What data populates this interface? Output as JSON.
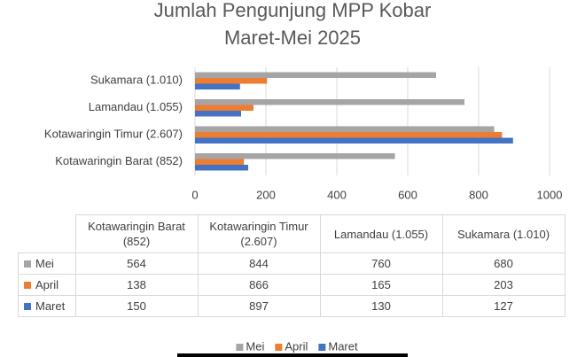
{
  "chart_data": {
    "type": "bar",
    "orientation": "horizontal",
    "title": "Jumlah Pengunjung MPP Kobar",
    "subtitle": "Maret-Mei 2025",
    "categories": [
      "Kotawaringin Barat (852)",
      "Kotawaringin Timur (2.607)",
      "Lamandau (1.055)",
      "Sukamara (1.010)"
    ],
    "series": [
      {
        "name": "Mei",
        "color": "#a5a5a5",
        "values": [
          564,
          844,
          760,
          680
        ]
      },
      {
        "name": "April",
        "color": "#ed7d31",
        "values": [
          138,
          866,
          165,
          203
        ]
      },
      {
        "name": "Maret",
        "color": "#4472c4",
        "values": [
          150,
          897,
          130,
          127
        ]
      }
    ],
    "xlim": [
      0,
      1000
    ],
    "xticks": [
      0,
      200,
      400,
      600,
      800,
      1000
    ],
    "grid": true,
    "legend": "bottom",
    "data_table": true
  }
}
